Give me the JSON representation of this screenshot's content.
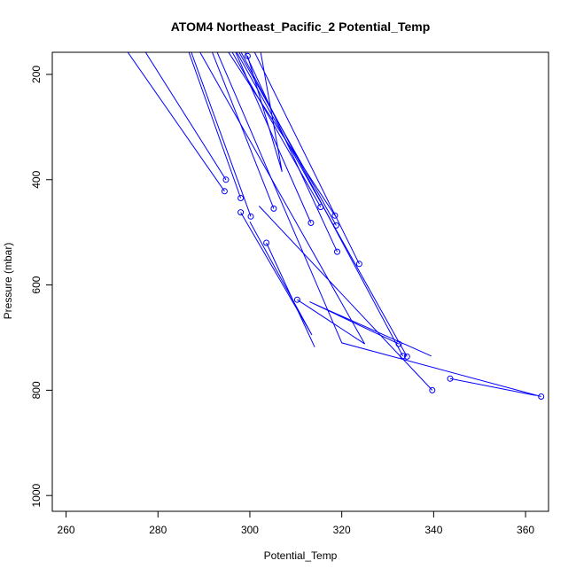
{
  "chart_data": {
    "type": "scatter",
    "title": "ATOM4 Northeast_Pacific_2 Potential_Temp",
    "xlabel": "Potential_Temp",
    "ylabel": "Pressure (mbar)",
    "xlim": [
      257,
      365
    ],
    "ylim": [
      1030,
      158
    ],
    "y_reversed": true,
    "x_ticks": [
      260,
      280,
      300,
      320,
      340,
      360
    ],
    "y_ticks": [
      200,
      400,
      600,
      800,
      1000
    ],
    "grid": false,
    "legend": "none",
    "colors": {
      "series": "#0000ff",
      "axis": "#000000",
      "background": "#ffffff"
    },
    "series": [
      {
        "x": [
          299.5,
          307.0,
          302.0
        ],
        "y": [
          165,
          385,
          140
        ]
      },
      {
        "x": [
          294.8,
          276.0
        ],
        "y": [
          400,
          140
        ]
      },
      {
        "x": [
          294.5,
          272.0
        ],
        "y": [
          422,
          140
        ]
      },
      {
        "x": [
          298.0,
          286.0
        ],
        "y": [
          435,
          140
        ]
      },
      {
        "x": [
          298.0,
          313.5,
          300.0
        ],
        "y": [
          462,
          695,
          480
        ]
      },
      {
        "x": [
          300.2,
          286.5
        ],
        "y": [
          470,
          140
        ]
      },
      {
        "x": [
          305.2,
          291.0
        ],
        "y": [
          455,
          140
        ]
      },
      {
        "x": [
          303.6,
          314.1
        ],
        "y": [
          520,
          718
        ]
      },
      {
        "x": [
          310.3,
          325.0,
          288.0
        ],
        "y": [
          628,
          712,
          140
        ]
      },
      {
        "x": [
          313.3,
          296.0
        ],
        "y": [
          482,
          140
        ]
      },
      {
        "x": [
          315.4,
          295.0
        ],
        "y": [
          452,
          140
        ]
      },
      {
        "x": [
          318.5,
          294.0
        ],
        "y": [
          468,
          140
        ]
      },
      {
        "x": [
          318.8,
          296.5
        ],
        "y": [
          487,
          140
        ]
      },
      {
        "x": [
          319.0,
          298.0
        ],
        "y": [
          537,
          140
        ]
      },
      {
        "x": [
          323.8,
          300.0
        ],
        "y": [
          560,
          140
        ]
      },
      {
        "x": [
          332.4,
          313.0,
          339.5
        ],
        "y": [
          712,
          632,
          735
        ]
      },
      {
        "x": [
          333.3,
          297.0
        ],
        "y": [
          735,
          140
        ]
      },
      {
        "x": [
          334.2,
          296.0
        ],
        "y": [
          736,
          140
        ]
      },
      {
        "x": [
          339.7,
          302.0
        ],
        "y": [
          800,
          450
        ]
      },
      {
        "x": [
          343.6,
          362.2
        ],
        "y": [
          778,
          810
        ]
      },
      {
        "x": [
          363.4,
          320.0,
          292.0
        ],
        "y": [
          812,
          710,
          140
        ]
      }
    ]
  }
}
